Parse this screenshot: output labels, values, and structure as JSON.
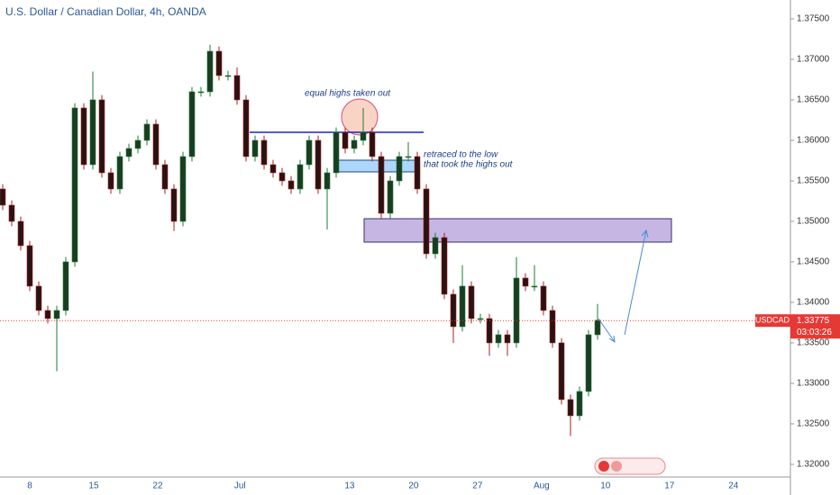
{
  "chart_data": {
    "type": "candlestick",
    "title": "U.S. Dollar / Canadian Dollar, 4h, OANDA",
    "symbol": "USDCAD",
    "last_price": {
      "value": 1.33775,
      "label": "1.33775"
    },
    "countdown": "03:03:26",
    "annotations": [
      "equal highs taken out",
      "retraced to the low",
      "that took the highs out"
    ],
    "up_color": "#1e7b34",
    "down_color": "#a82020",
    "ylim": [
      1.31844,
      1.37733
    ],
    "yticks": [
      {
        "value": 1.32,
        "label": "1.32000"
      },
      {
        "value": 1.325,
        "label": "1.32500"
      },
      {
        "value": 1.33,
        "label": "1.33000"
      },
      {
        "value": 1.335,
        "label": "1.33500"
      },
      {
        "value": 1.34,
        "label": "1.34000"
      },
      {
        "value": 1.345,
        "label": "1.34500"
      },
      {
        "value": 1.35,
        "label": "1.35000"
      },
      {
        "value": 1.355,
        "label": "1.35500"
      },
      {
        "value": 1.36,
        "label": "1.36000"
      },
      {
        "value": 1.365,
        "label": "1.36500"
      },
      {
        "value": 1.37,
        "label": "1.37000"
      },
      {
        "value": 1.375,
        "label": "1.37500"
      }
    ],
    "x_labels": [
      "8",
      "15",
      "22",
      "Jul",
      "13",
      "20",
      "27",
      "Aug",
      "10",
      "17",
      "24"
    ],
    "candles": [
      [
        1.354,
        1.3546,
        1.3514,
        1.352
      ],
      [
        1.352,
        1.3526,
        1.3494,
        1.35
      ],
      [
        1.35,
        1.3506,
        1.3464,
        1.347
      ],
      [
        1.347,
        1.3476,
        1.3414,
        1.342
      ],
      [
        1.342,
        1.3426,
        1.3384,
        1.339
      ],
      [
        1.339,
        1.3396,
        1.3374,
        1.338
      ],
      [
        1.338,
        1.3396,
        1.3315,
        1.339
      ],
      [
        1.339,
        1.3456,
        1.3384,
        1.345
      ],
      [
        1.345,
        1.3646,
        1.3444,
        1.364
      ],
      [
        1.364,
        1.3646,
        1.3564,
        1.357
      ],
      [
        1.357,
        1.3685,
        1.3564,
        1.365
      ],
      [
        1.365,
        1.3656,
        1.3554,
        1.356
      ],
      [
        1.356,
        1.3566,
        1.3534,
        1.354
      ],
      [
        1.354,
        1.3586,
        1.3534,
        1.358
      ],
      [
        1.358,
        1.3596,
        1.3574,
        1.359
      ],
      [
        1.359,
        1.3606,
        1.3584,
        1.36
      ],
      [
        1.36,
        1.3626,
        1.3594,
        1.362
      ],
      [
        1.362,
        1.3626,
        1.3564,
        1.357
      ],
      [
        1.357,
        1.3576,
        1.3534,
        1.354
      ],
      [
        1.354,
        1.3546,
        1.3488,
        1.35
      ],
      [
        1.35,
        1.3586,
        1.3494,
        1.358
      ],
      [
        1.358,
        1.3666,
        1.3574,
        1.366
      ],
      [
        1.366,
        1.3666,
        1.3654,
        1.366
      ],
      [
        1.366,
        1.3718,
        1.3654,
        1.371
      ],
      [
        1.371,
        1.3716,
        1.3674,
        1.368
      ],
      [
        1.368,
        1.3686,
        1.3674,
        1.368
      ],
      [
        1.368,
        1.369,
        1.3644,
        1.365
      ],
      [
        1.365,
        1.3656,
        1.3574,
        1.358
      ],
      [
        1.358,
        1.3606,
        1.3574,
        1.36
      ],
      [
        1.36,
        1.3606,
        1.3564,
        1.357
      ],
      [
        1.357,
        1.3576,
        1.3554,
        1.356
      ],
      [
        1.356,
        1.3566,
        1.3544,
        1.355
      ],
      [
        1.355,
        1.3556,
        1.3534,
        1.354
      ],
      [
        1.354,
        1.3576,
        1.3534,
        1.357
      ],
      [
        1.357,
        1.3606,
        1.3564,
        1.36
      ],
      [
        1.36,
        1.3606,
        1.3534,
        1.354
      ],
      [
        1.354,
        1.3566,
        1.349,
        1.356
      ],
      [
        1.356,
        1.3616,
        1.3554,
        1.361
      ],
      [
        1.361,
        1.3616,
        1.3584,
        1.359
      ],
      [
        1.359,
        1.3606,
        1.3584,
        1.36
      ],
      [
        1.36,
        1.364,
        1.3594,
        1.361
      ],
      [
        1.361,
        1.3616,
        1.3574,
        1.358
      ],
      [
        1.358,
        1.3586,
        1.3504,
        1.351
      ],
      [
        1.351,
        1.3556,
        1.3504,
        1.355
      ],
      [
        1.355,
        1.3586,
        1.3544,
        1.358
      ],
      [
        1.358,
        1.3598,
        1.3574,
        1.358
      ],
      [
        1.358,
        1.3586,
        1.3534,
        1.354
      ],
      [
        1.354,
        1.3546,
        1.3454,
        1.346
      ],
      [
        1.346,
        1.3486,
        1.3454,
        1.348
      ],
      [
        1.348,
        1.3486,
        1.3404,
        1.341
      ],
      [
        1.341,
        1.3416,
        1.335,
        1.337
      ],
      [
        1.337,
        1.3446,
        1.3364,
        1.342
      ],
      [
        1.342,
        1.3426,
        1.3374,
        1.338
      ],
      [
        1.338,
        1.3386,
        1.3374,
        1.338
      ],
      [
        1.338,
        1.3386,
        1.3334,
        1.335
      ],
      [
        1.335,
        1.3366,
        1.3344,
        1.336
      ],
      [
        1.336,
        1.3366,
        1.3334,
        1.335
      ],
      [
        1.335,
        1.3456,
        1.3344,
        1.343
      ],
      [
        1.343,
        1.3436,
        1.3414,
        1.342
      ],
      [
        1.342,
        1.3446,
        1.3414,
        1.342
      ],
      [
        1.342,
        1.3426,
        1.3384,
        1.339
      ],
      [
        1.339,
        1.3396,
        1.3344,
        1.335
      ],
      [
        1.335,
        1.3356,
        1.3274,
        1.328
      ],
      [
        1.328,
        1.3286,
        1.3235,
        1.326
      ],
      [
        1.326,
        1.3296,
        1.3254,
        1.329
      ],
      [
        1.329,
        1.3366,
        1.3284,
        1.336
      ],
      [
        1.336,
        1.3398,
        1.3354,
        1.3378
      ]
    ]
  }
}
